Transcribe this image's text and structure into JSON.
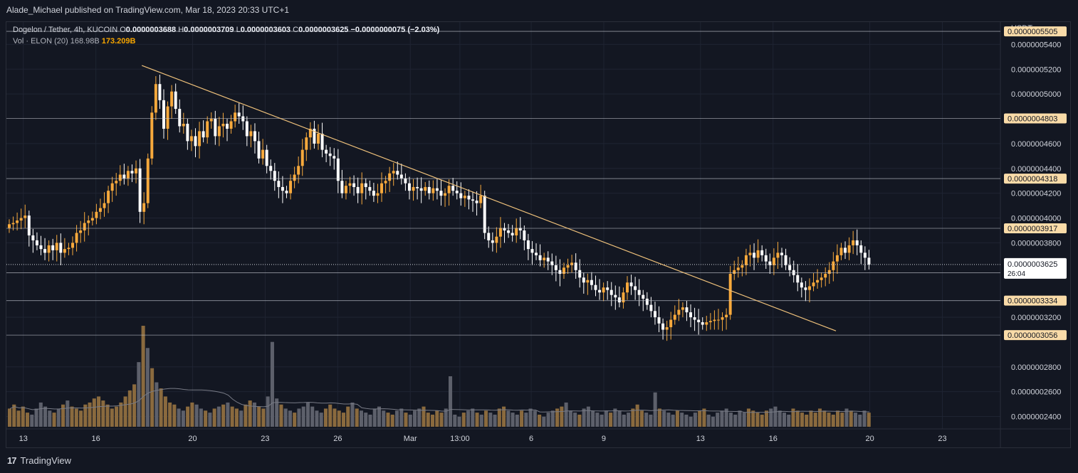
{
  "header": {
    "publisher": "Alade_Michael published on TradingView.com, Mar 18, 2023 20:33 UTC+1"
  },
  "legend": {
    "symbol": "Dogelon / Tether, 4h, KUCOIN",
    "o_label": "O",
    "o": "0.0000003688",
    "h_label": "H",
    "h": "0.0000003709",
    "l_label": "L",
    "l": "0.0000003603",
    "c_label": "C",
    "c": "0.0000003625",
    "change": "−0.0000000075 (−2.03%)",
    "vol_label": "Vol · ELON (20)",
    "vol_ma": "168.98B",
    "vol": "173.209B"
  },
  "footer": {
    "brand": "TradingView"
  },
  "colors": {
    "background": "#131722",
    "grid": "#1f2432",
    "up": "#f7a93c",
    "down": "#ffffff",
    "trendline": "#f0c27b",
    "hline": "#c8ccd4",
    "price_badge": "#f9dba8"
  },
  "chart_data": {
    "type": "candlestick",
    "currency": "USDT",
    "y_ticks": [
      "0.0000005400",
      "0.0000005200",
      "0.0000005000",
      "0.0000004600",
      "0.0000004400",
      "0.0000004200",
      "0.0000004000",
      "0.0000003800",
      "0.0000003200",
      "0.0000002800",
      "0.0000002600",
      "0.0000002400"
    ],
    "y_tick_values": [
      5.4,
      5.2,
      5.0,
      4.6,
      4.4,
      4.2,
      4.0,
      3.8,
      3.2,
      2.8,
      2.6,
      2.4
    ],
    "y_range_e7": [
      2.3,
      5.58
    ],
    "x_ticks": [
      {
        "label": "13",
        "day": 0
      },
      {
        "label": "16",
        "day": 3
      },
      {
        "label": "20",
        "day": 7
      },
      {
        "label": "23",
        "day": 10
      },
      {
        "label": "26",
        "day": 13
      },
      {
        "label": "Mar",
        "day": 16
      },
      {
        "label": "13:00",
        "day": 18.05
      },
      {
        "label": "6",
        "day": 21
      },
      {
        "label": "9",
        "day": 24
      },
      {
        "label": "13",
        "day": 28
      },
      {
        "label": "16",
        "day": 31
      },
      {
        "label": "20",
        "day": 35
      },
      {
        "label": "23",
        "day": 38
      }
    ],
    "x_range_days": [
      -0.7,
      40.4
    ],
    "horizontal_levels": [
      {
        "label": "0.0000005505",
        "value": 5.505
      },
      {
        "label": "0.0000004803",
        "value": 4.803
      },
      {
        "label": "0.0000004318",
        "value": 4.318
      },
      {
        "label": "0.0000003917",
        "value": 3.917
      },
      {
        "label": "0.0000003559",
        "value": 3.559
      },
      {
        "label": "0.0000003334",
        "value": 3.334
      },
      {
        "label": "0.0000003056",
        "value": 3.056
      }
    ],
    "current_price": {
      "label": "0.0000003625",
      "value": 3.625,
      "countdown": "26:04"
    },
    "trendline": {
      "start": {
        "day": 4.9,
        "price": 5.23
      },
      "end": {
        "day": 33.6,
        "price": 3.09
      }
    },
    "candles_close_e7": [
      3.95,
      3.96,
      3.98,
      4.0,
      4.02,
      3.86,
      3.82,
      3.78,
      3.75,
      3.72,
      3.78,
      3.74,
      3.8,
      3.72,
      3.75,
      3.76,
      3.8,
      3.88,
      3.9,
      3.96,
      3.98,
      4.0,
      4.05,
      4.08,
      4.12,
      4.22,
      4.28,
      4.3,
      4.35,
      4.32,
      4.38,
      4.36,
      4.4,
      4.05,
      4.12,
      4.48,
      4.85,
      5.08,
      4.95,
      4.72,
      4.9,
      5.02,
      4.88,
      4.74,
      4.76,
      4.62,
      4.66,
      4.58,
      4.7,
      4.65,
      4.78,
      4.8,
      4.66,
      4.74,
      4.76,
      4.72,
      4.78,
      4.85,
      4.82,
      4.78,
      4.66,
      4.7,
      4.62,
      4.48,
      4.55,
      4.42,
      4.38,
      4.3,
      4.25,
      4.22,
      4.2,
      4.3,
      4.35,
      4.42,
      4.55,
      4.65,
      4.72,
      4.6,
      4.68,
      4.55,
      4.52,
      4.5,
      4.48,
      4.3,
      4.2,
      4.26,
      4.28,
      4.25,
      4.2,
      4.28,
      4.25,
      4.22,
      4.18,
      4.2,
      4.28,
      4.3,
      4.36,
      4.38,
      4.35,
      4.32,
      4.28,
      4.22,
      4.25,
      4.24,
      4.22,
      4.25,
      4.2,
      4.24,
      4.22,
      4.18,
      4.2,
      4.26,
      4.22,
      4.2,
      4.16,
      4.18,
      4.15,
      4.14,
      4.12,
      4.18,
      3.88,
      3.82,
      3.8,
      3.85,
      3.92,
      3.9,
      3.88,
      3.86,
      3.92,
      3.9,
      3.82,
      3.75,
      3.72,
      3.7,
      3.66,
      3.68,
      3.65,
      3.62,
      3.58,
      3.55,
      3.6,
      3.62,
      3.64,
      3.58,
      3.52,
      3.48,
      3.5,
      3.46,
      3.42,
      3.4,
      3.44,
      3.42,
      3.38,
      3.36,
      3.32,
      3.4,
      3.48,
      3.45,
      3.42,
      3.38,
      3.35,
      3.3,
      3.25,
      3.2,
      3.15,
      3.1,
      3.12,
      3.18,
      3.22,
      3.26,
      3.28,
      3.24,
      3.2,
      3.18,
      3.16,
      3.14,
      3.16,
      3.17,
      3.18,
      3.18,
      3.2,
      3.22,
      3.55,
      3.58,
      3.6,
      3.62,
      3.7,
      3.72,
      3.68,
      3.74,
      3.7,
      3.65,
      3.62,
      3.68,
      3.72,
      3.7,
      3.62,
      3.58,
      3.54,
      3.48,
      3.44,
      3.42,
      3.45,
      3.48,
      3.5,
      3.52,
      3.55,
      3.58,
      3.65,
      3.7,
      3.76,
      3.72,
      3.78,
      3.82,
      3.78,
      3.72,
      3.68,
      3.625
    ],
    "volume_bars_rel": [
      18,
      22,
      16,
      20,
      14,
      12,
      18,
      24,
      20,
      16,
      14,
      18,
      22,
      26,
      20,
      18,
      16,
      22,
      24,
      28,
      30,
      26,
      22,
      18,
      20,
      24,
      30,
      36,
      42,
      64,
      100,
      78,
      58,
      44,
      38,
      30,
      24,
      22,
      18,
      16,
      20,
      24,
      22,
      18,
      16,
      14,
      18,
      20,
      22,
      24,
      20,
      18,
      16,
      22,
      26,
      24,
      20,
      18,
      30,
      84,
      28,
      22,
      18,
      16,
      14,
      18,
      20,
      24,
      20,
      16,
      14,
      18,
      22,
      18,
      16,
      14,
      20,
      24,
      18,
      16,
      14,
      12,
      18,
      20,
      16,
      14,
      12,
      16,
      18,
      14,
      12,
      16,
      18,
      20,
      14,
      12,
      16,
      14,
      18,
      50,
      12,
      10,
      14,
      16,
      18,
      14,
      12,
      16,
      14,
      12,
      18,
      20,
      16,
      14,
      12,
      16,
      14,
      18,
      16,
      12,
      10,
      14,
      16,
      18,
      20,
      24,
      16,
      14,
      12,
      18,
      20,
      16,
      14,
      12,
      16,
      14,
      18,
      16,
      12,
      14,
      18,
      22,
      16,
      14,
      12,
      34,
      18,
      16,
      14,
      12,
      16,
      14,
      12,
      10,
      14,
      16,
      18,
      12,
      10,
      14,
      16,
      18,
      14,
      12,
      16,
      14,
      18,
      16,
      14,
      12,
      16,
      18,
      20,
      16,
      14,
      12,
      18,
      16,
      14,
      12,
      16,
      14,
      18,
      16,
      14,
      12,
      16,
      14,
      18,
      16,
      14,
      12,
      16,
      14
    ]
  }
}
